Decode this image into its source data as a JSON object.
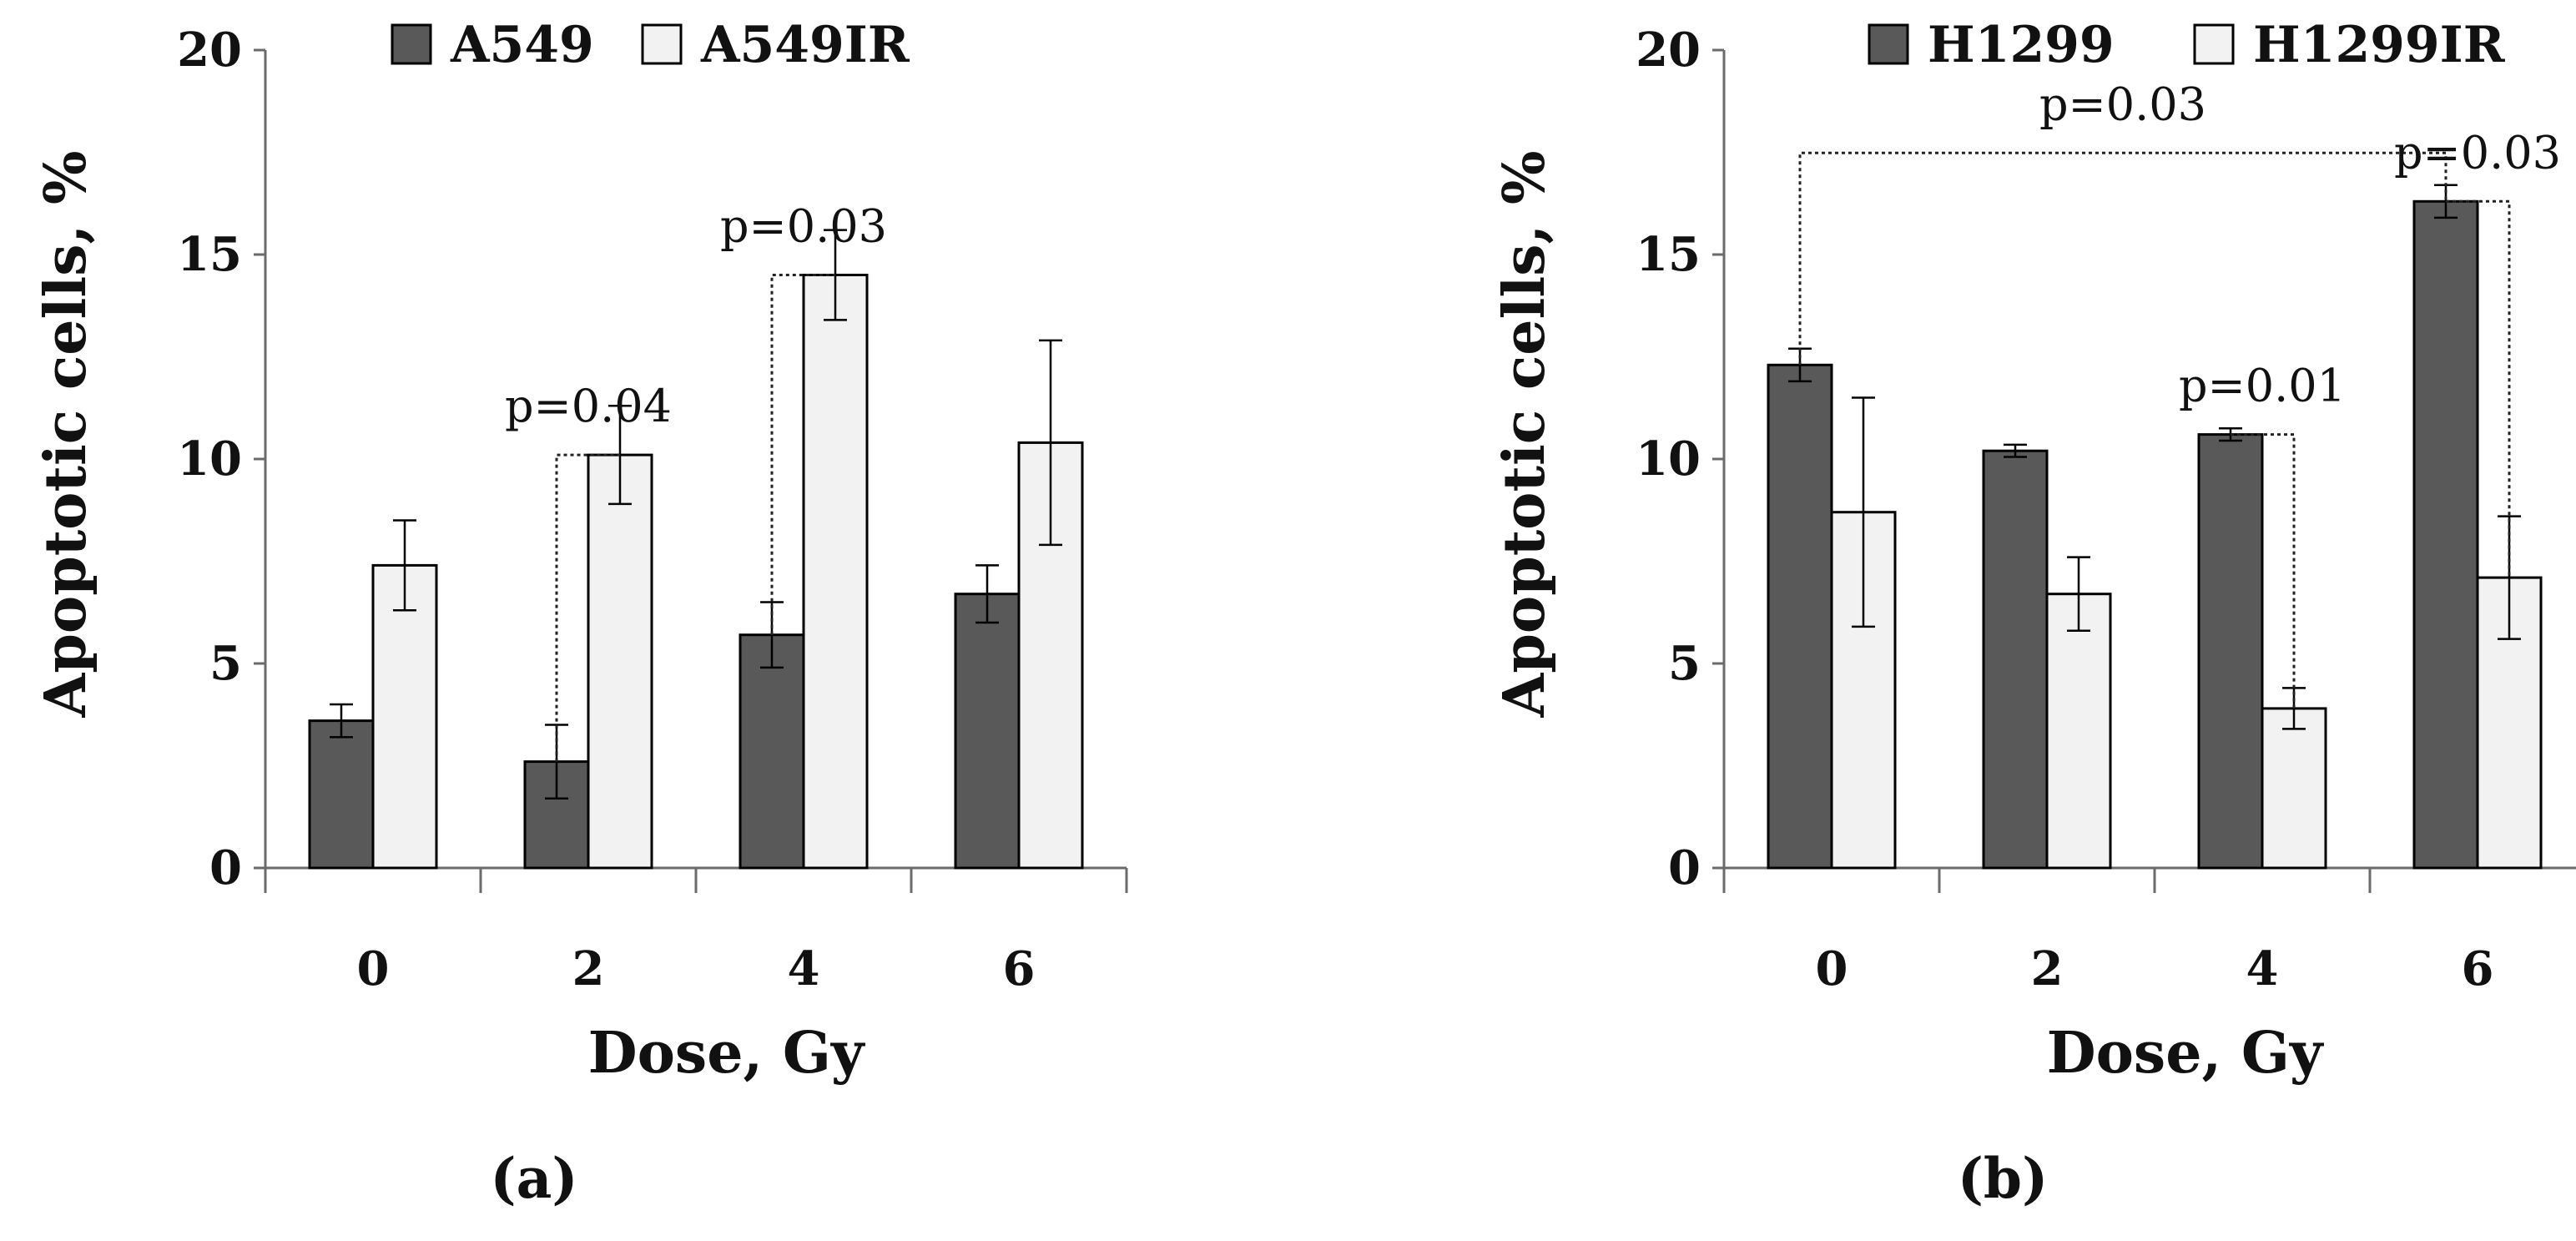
{
  "chart_data": [
    {
      "type": "bar",
      "panel_label": "(a)",
      "categories": [
        "0",
        "2",
        "4",
        "6"
      ],
      "xlabel": "Dose, Gy",
      "ylabel": "Apoptotic cells, %",
      "ylim": [
        0,
        20
      ],
      "yticks": [
        "0",
        "5",
        "10",
        "15",
        "20"
      ],
      "series": [
        {
          "name": "A549",
          "color": "#595959",
          "values": [
            3.6,
            2.6,
            5.7,
            6.7
          ],
          "errors": [
            0.4,
            0.9,
            0.8,
            0.7
          ]
        },
        {
          "name": "A549IR",
          "color": "#f2f2f2",
          "values": [
            7.4,
            10.1,
            14.5,
            10.4
          ],
          "errors": [
            1.1,
            1.2,
            1.1,
            2.5
          ]
        }
      ],
      "annotations": [
        {
          "text": "p=0.04",
          "from_category": 1,
          "from_series": 0,
          "to_category": 1,
          "to_series": 1
        },
        {
          "text": "p=0.03",
          "from_category": 2,
          "from_series": 0,
          "to_category": 2,
          "to_series": 1
        }
      ]
    },
    {
      "type": "bar",
      "panel_label": "(b)",
      "categories": [
        "0",
        "2",
        "4",
        "6"
      ],
      "xlabel": "Dose, Gy",
      "ylabel": "Apoptotic cells, %",
      "ylim": [
        0,
        20
      ],
      "yticks": [
        "0",
        "5",
        "10",
        "15",
        "20"
      ],
      "series": [
        {
          "name": "H1299",
          "color": "#595959",
          "values": [
            12.3,
            10.2,
            10.6,
            16.3
          ],
          "errors": [
            0.4,
            0.15,
            0.15,
            0.4
          ]
        },
        {
          "name": "H1299IR",
          "color": "#f2f2f2",
          "values": [
            8.7,
            6.7,
            3.9,
            7.1
          ],
          "errors": [
            2.8,
            0.9,
            0.5,
            1.5
          ]
        }
      ],
      "annotations": [
        {
          "text": "p=0.01",
          "from_category": 2,
          "from_series": 0,
          "to_category": 2,
          "to_series": 1
        },
        {
          "text": "p=0.03",
          "from_category": 0,
          "from_series": 0,
          "to_category": 3,
          "to_series": 0
        },
        {
          "text": "p=0.03",
          "from_category": 3,
          "from_series": 0,
          "to_category": 3,
          "to_series": 1
        }
      ]
    }
  ]
}
